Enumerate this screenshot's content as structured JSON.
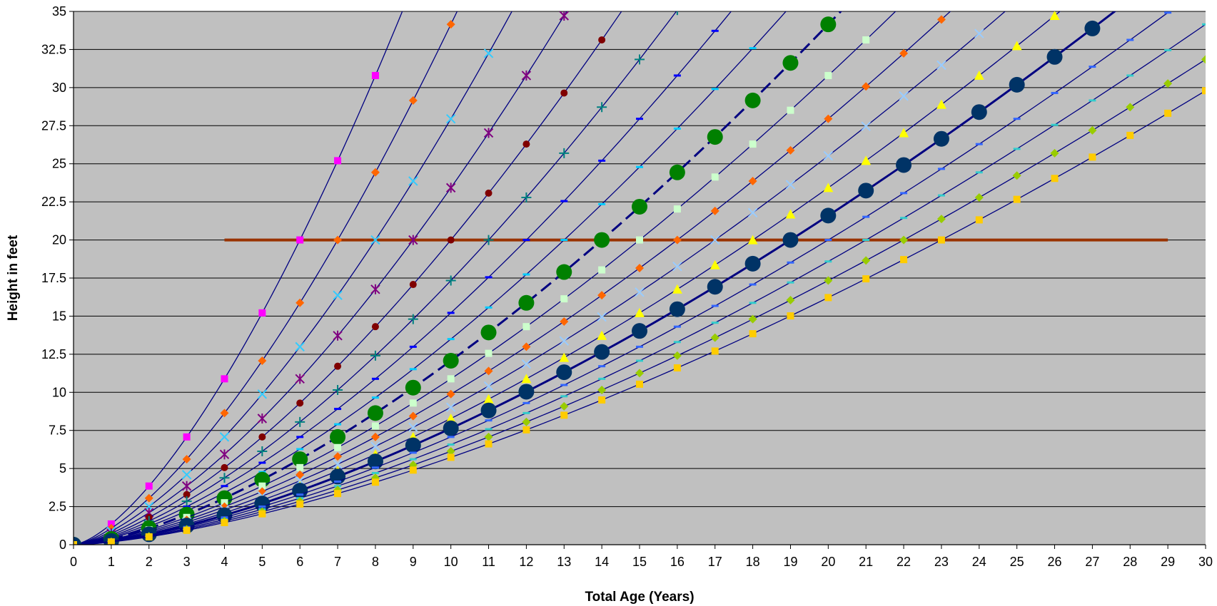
{
  "chart_data": {
    "type": "line",
    "title": "",
    "xlabel": "Total Age (Years)",
    "ylabel": "Height in feet",
    "xlim": [
      0,
      30
    ],
    "ylim": [
      0,
      35
    ],
    "x_ticks": [
      "0",
      "1",
      "2",
      "3",
      "4",
      "5",
      "6",
      "7",
      "8",
      "9",
      "10",
      "11",
      "12",
      "13",
      "14",
      "15",
      "16",
      "17",
      "18",
      "19",
      "20",
      "21",
      "22",
      "23",
      "24",
      "25",
      "26",
      "27",
      "28",
      "29",
      "30"
    ],
    "y_ticks": [
      "0",
      "2.5",
      "5",
      "7.5",
      "10",
      "12.5",
      "15",
      "17.5",
      "20",
      "22.5",
      "25",
      "27.5",
      "30",
      "32.5",
      "35"
    ],
    "grid": "horizontal",
    "legend": "none",
    "plot_background": "#c0c0c0",
    "curve_color": "#000080",
    "curve_shape": "height = (age / A)^1.5 * 20, each series reaching 20 ft at age A",
    "series": [
      {
        "reach_age": 6,
        "marker": "square",
        "color": "#ff00ff"
      },
      {
        "reach_age": 7,
        "marker": "diamond",
        "color": "#ff6600"
      },
      {
        "reach_age": 8,
        "marker": "x",
        "color": "#33ccff"
      },
      {
        "reach_age": 9,
        "marker": "star",
        "color": "#800080"
      },
      {
        "reach_age": 10,
        "marker": "circle",
        "color": "#800000"
      },
      {
        "reach_age": 11,
        "marker": "plus",
        "color": "#008080"
      },
      {
        "reach_age": 12,
        "marker": "dash",
        "color": "#0000ff"
      },
      {
        "reach_age": 13,
        "marker": "dash",
        "color": "#00ccff"
      },
      {
        "reach_age": 14,
        "marker": "bigcircle",
        "color": "#008000",
        "highlight": true,
        "dashed": true
      },
      {
        "reach_age": 15,
        "marker": "square",
        "color": "#ccffcc"
      },
      {
        "reach_age": 16,
        "marker": "diamond",
        "color": "#ff6600"
      },
      {
        "reach_age": 17,
        "marker": "x",
        "color": "#99ccff"
      },
      {
        "reach_age": 18,
        "marker": "triangle",
        "color": "#ffff00"
      },
      {
        "reach_age": 19,
        "marker": "bigcircle",
        "color": "#003366",
        "highlight": true
      },
      {
        "reach_age": 20,
        "marker": "dash",
        "color": "#3366ff"
      },
      {
        "reach_age": 21,
        "marker": "dash",
        "color": "#33cccc"
      },
      {
        "reach_age": 22,
        "marker": "diamond",
        "color": "#99cc00"
      },
      {
        "reach_age": 23,
        "marker": "square",
        "color": "#ffcc00"
      }
    ],
    "reference_line": {
      "y": 20,
      "x_start": 4,
      "x_end": 29,
      "color": "#993300"
    }
  }
}
